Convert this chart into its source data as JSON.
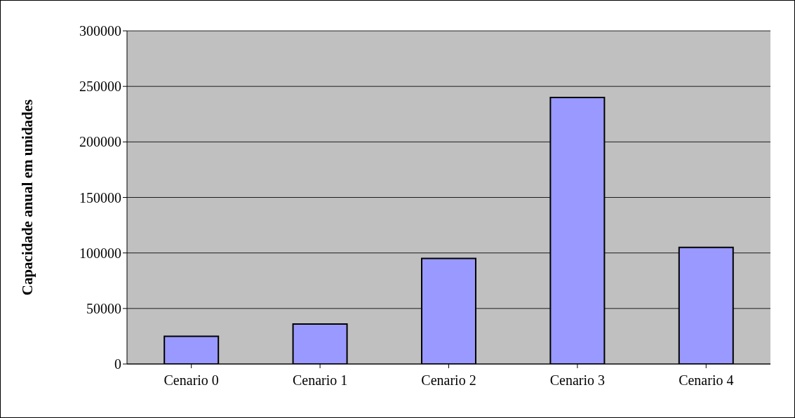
{
  "chart_data": {
    "type": "bar",
    "ylabel": "Capacidade anual em unidades",
    "categories": [
      "Cenario 0",
      "Cenario 1",
      "Cenario 2",
      "Cenario 3",
      "Cenario 4"
    ],
    "values": [
      25000,
      36000,
      95000,
      240000,
      105000
    ],
    "color": "#9999ff",
    "ylim": [
      0,
      300000
    ],
    "yticks": [
      0,
      50000,
      100000,
      150000,
      200000,
      250000,
      300000
    ],
    "grid": "y",
    "legend": false
  }
}
